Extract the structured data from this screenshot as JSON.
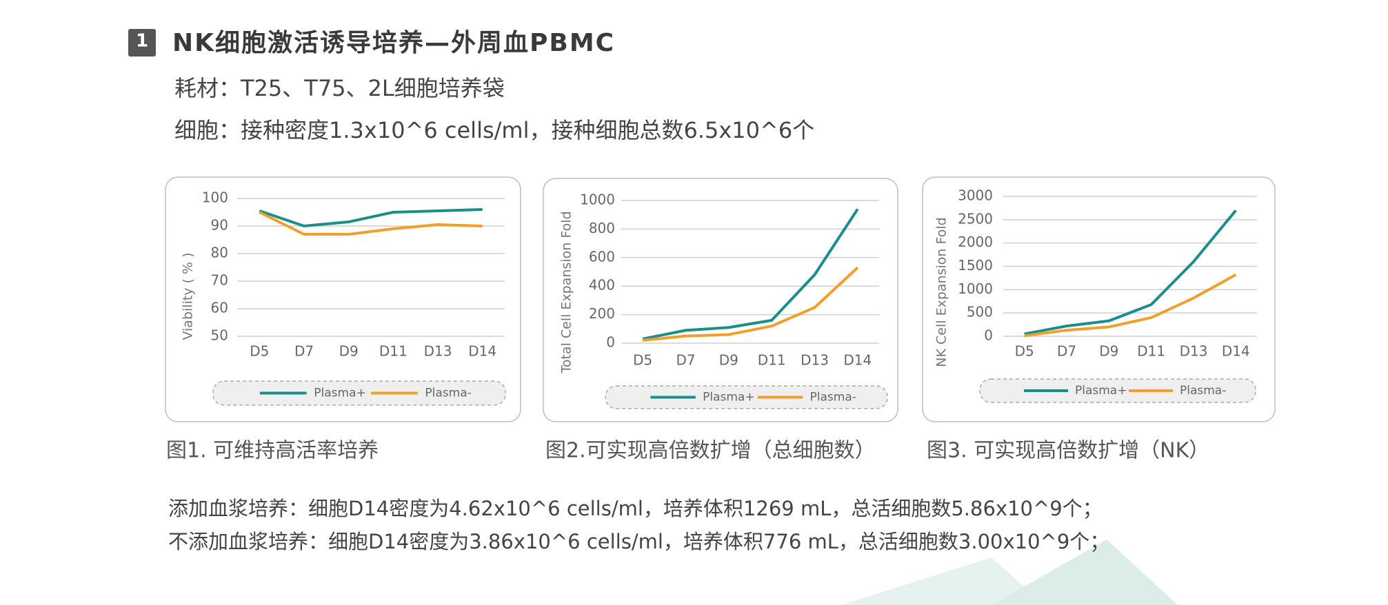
{
  "header": {
    "icon": "1",
    "title": "NK细胞激活诱导培养—外周血PBMC"
  },
  "info": [
    "耗材：T25、T75、2L细胞培养袋",
    "细胞：接种密度1.3x10^6 cells/ml，接种细胞总数6.5x10^6个"
  ],
  "chart_data": [
    {
      "type": "line",
      "y_label": "Viability ( % )",
      "caption": "图1. 可维持高活率培养",
      "categories": [
        "D5",
        "D7",
        "D9",
        "D11",
        "D13",
        "D14"
      ],
      "series": [
        {
          "name": "Plasma+",
          "color": "#1a8f8a",
          "values": [
            95.5,
            90,
            91.5,
            95,
            95.5,
            96
          ]
        },
        {
          "name": "Plasma-",
          "color": "#f0a02a",
          "values": [
            95,
            87,
            87,
            89,
            90.5,
            90
          ]
        }
      ],
      "ylim": [
        50,
        100
      ],
      "yticks": [
        50,
        60,
        70,
        80,
        90,
        100
      ],
      "grid": true,
      "legend": "bottom"
    },
    {
      "type": "line",
      "y_label": "Total Cell Expansion Fold",
      "caption": "图2.可实现高倍数扩增（总细胞数）",
      "categories": [
        "D5",
        "D7",
        "D9",
        "D11",
        "D13",
        "D14"
      ],
      "series": [
        {
          "name": "Plasma+",
          "color": "#1a8f8a",
          "values": [
            30,
            90,
            110,
            160,
            480,
            940
          ]
        },
        {
          "name": "Plasma-",
          "color": "#f0a02a",
          "values": [
            20,
            50,
            60,
            120,
            250,
            530
          ]
        }
      ],
      "ylim": [
        0,
        1000
      ],
      "yticks": [
        0,
        200,
        400,
        600,
        800,
        1000
      ],
      "grid": true,
      "legend": "bottom"
    },
    {
      "type": "line",
      "y_label": "NK Cell Expansion Fold",
      "caption": "图3. 可实现高倍数扩增（NK）",
      "categories": [
        "D5",
        "D7",
        "D9",
        "D11",
        "D13",
        "D14"
      ],
      "series": [
        {
          "name": "Plasma+",
          "color": "#1a8f8a",
          "values": [
            50,
            220,
            330,
            680,
            1600,
            2700
          ]
        },
        {
          "name": "Plasma-",
          "color": "#f0a02a",
          "values": [
            10,
            130,
            200,
            400,
            820,
            1320
          ]
        }
      ],
      "ylim": [
        0,
        3000
      ],
      "yticks": [
        0,
        500,
        1000,
        1500,
        2000,
        2500,
        3000
      ],
      "grid": true,
      "legend": "bottom"
    }
  ],
  "notes": [
    "添加血浆培养：细胞D14密度为4.62x10^6 cells/ml，培养体积1269 mL，总活细胞数5.86x10^9个；",
    "不添加血浆培养：细胞D14密度为3.86x10^6 cells/ml，培养体积776 mL，总活细胞数3.00x10^9个；"
  ]
}
